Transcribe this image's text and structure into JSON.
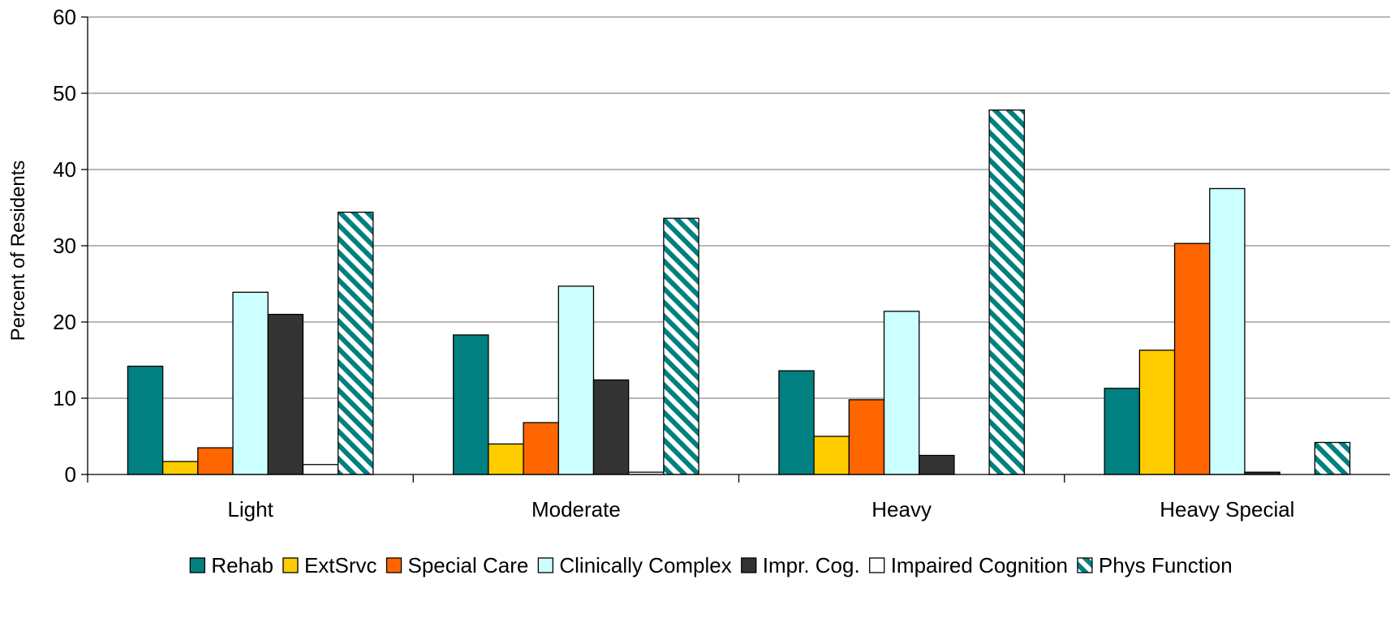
{
  "chart_data": {
    "type": "bar",
    "title": "",
    "xlabel": "",
    "ylabel": "Percent of Residents",
    "ylim": [
      0,
      60
    ],
    "yticks": [
      "0",
      "10",
      "20",
      "30",
      "40",
      "50",
      "60"
    ],
    "grid": true,
    "legend_position": "bottom",
    "categories": [
      "Light",
      "Moderate",
      "Heavy",
      "Heavy Special"
    ],
    "series": [
      {
        "name": "Rehab",
        "color": "#008080",
        "pattern": "solid",
        "values": [
          14.2,
          18.3,
          13.6,
          11.3
        ]
      },
      {
        "name": "ExtSrvc",
        "color": "#FFCC00",
        "pattern": "solid",
        "values": [
          1.7,
          4.0,
          5.0,
          16.3
        ]
      },
      {
        "name": "Special Care",
        "color": "#FF6600",
        "pattern": "solid",
        "values": [
          3.5,
          6.8,
          9.8,
          30.3
        ]
      },
      {
        "name": "Clinically Complex",
        "color": "#CCFFFF",
        "pattern": "solid",
        "values": [
          23.9,
          24.7,
          21.4,
          37.5
        ]
      },
      {
        "name": "Impr. Cog.",
        "color": "#333333",
        "pattern": "solid",
        "values": [
          21.0,
          12.4,
          2.5,
          0.3
        ]
      },
      {
        "name": "Impaired Cognition",
        "color": "#FFFFFF",
        "pattern": "solid",
        "values": [
          1.3,
          0.3,
          0,
          0
        ]
      },
      {
        "name": "Phys Function",
        "color": "#008080",
        "pattern": "hatch",
        "values": [
          34.4,
          33.6,
          47.8,
          4.2
        ]
      }
    ]
  }
}
